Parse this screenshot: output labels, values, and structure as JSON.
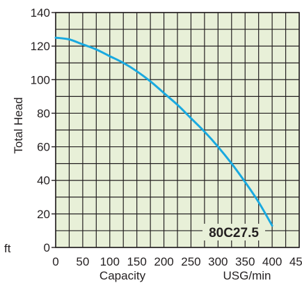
{
  "chart_data": {
    "type": "line",
    "x": [
      0,
      25,
      50,
      75,
      100,
      125,
      150,
      175,
      200,
      225,
      250,
      275,
      300,
      325,
      350,
      375,
      400
    ],
    "series": [
      {
        "values": [
          125,
          124,
          121,
          118,
          114,
          110,
          105,
          99,
          92,
          85,
          77,
          69,
          60,
          50,
          39,
          27,
          13
        ],
        "color": "#19a9e0"
      }
    ],
    "xlim": [
      0,
      450
    ],
    "ylim": [
      0,
      140
    ],
    "xticks": [
      "0",
      "50",
      "100",
      "150",
      "200",
      "250",
      "300",
      "350",
      "400",
      "450"
    ],
    "yticks": [
      "0",
      "20",
      "40",
      "60",
      "80",
      "100",
      "120",
      "140"
    ],
    "xlabel": "Capacity",
    "x_unit": "USG/min",
    "ylabel": "Total Head",
    "y_unit": "ft",
    "annotation": "80C27.5",
    "grid": true,
    "colors": {
      "plot_background": "#e8f0d8",
      "grid": "#231f20",
      "curve": "#19a9e0"
    }
  }
}
